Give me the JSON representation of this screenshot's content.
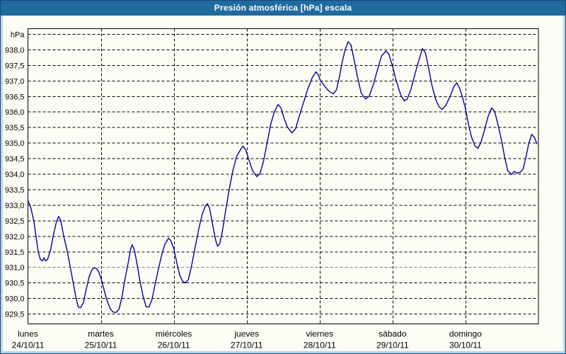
{
  "window": {
    "title": "Presión atmosférica [hPa] escala"
  },
  "colors": {
    "titlebar": "#1f6b9e",
    "frame_light": "#b9d6ec",
    "frame_dark": "#17497a",
    "panel": "#fdfdf6",
    "grid": "#000000",
    "text": "#000000",
    "line": "#0000a0"
  },
  "chart_data": {
    "type": "line",
    "title": "Presión atmosférica [hPa] escala",
    "ylabel": "hPa",
    "grid": "dashed",
    "legend": "none",
    "y_axis": {
      "unit_label": "hPa",
      "decimal_separator": ",",
      "ticks": [
        {
          "value": 938.5,
          "label": "hPa"
        },
        {
          "value": 938.0,
          "label": "938,0"
        },
        {
          "value": 937.5,
          "label": "937,5"
        },
        {
          "value": 937.0,
          "label": "937,0"
        },
        {
          "value": 936.5,
          "label": "936,5"
        },
        {
          "value": 936.0,
          "label": "936,0"
        },
        {
          "value": 935.5,
          "label": "935,5"
        },
        {
          "value": 935.0,
          "label": "935,0"
        },
        {
          "value": 934.5,
          "label": "934,5"
        },
        {
          "value": 934.0,
          "label": "934,0"
        },
        {
          "value": 933.5,
          "label": "933,5"
        },
        {
          "value": 933.0,
          "label": "933,0"
        },
        {
          "value": 932.5,
          "label": "932,5"
        },
        {
          "value": 932.0,
          "label": "932,0"
        },
        {
          "value": 931.5,
          "label": "931,5"
        },
        {
          "value": 931.0,
          "label": "931,0"
        },
        {
          "value": 930.5,
          "label": "930,5"
        },
        {
          "value": 930.0,
          "label": "930,0"
        },
        {
          "value": 929.5,
          "label": "929,5"
        }
      ],
      "ylim_plot_box": [
        929.17,
        938.67
      ]
    },
    "x_axis": {
      "unit": "days",
      "range_days": [
        0,
        7
      ],
      "days": [
        {
          "name": "lunes",
          "date": "24/10/11"
        },
        {
          "name": "martes",
          "date": "25/10/11"
        },
        {
          "name": "miércoles",
          "date": "26/10/11"
        },
        {
          "name": "jueves",
          "date": "27/10/11"
        },
        {
          "name": "viernes",
          "date": "28/10/11"
        },
        {
          "name": "sábado",
          "date": "29/10/11"
        },
        {
          "name": "domingo",
          "date": "30/10/11"
        }
      ]
    },
    "series": [
      {
        "name": "presión atmosférica",
        "color": "#0000a0",
        "x_days": [
          0,
          0.04,
          0.08,
          0.11,
          0.14,
          0.17,
          0.2,
          0.22,
          0.24,
          0.27,
          0.31,
          0.35,
          0.39,
          0.42,
          0.45,
          0.49,
          0.54,
          0.58,
          0.62,
          0.66,
          0.69,
          0.72,
          0.76,
          0.8,
          0.84,
          0.88,
          0.91,
          0.94,
          0.97,
          1.0,
          1.04,
          1.08,
          1.13,
          1.17,
          1.21,
          1.25,
          1.29,
          1.33,
          1.38,
          1.41,
          1.43,
          1.46,
          1.5,
          1.54,
          1.58,
          1.62,
          1.66,
          1.7,
          1.74,
          1.79,
          1.84,
          1.88,
          1.93,
          1.96,
          2.0,
          2.04,
          2.08,
          2.12,
          2.16,
          2.2,
          2.24,
          2.29,
          2.34,
          2.39,
          2.43,
          2.46,
          2.49,
          2.53,
          2.57,
          2.6,
          2.63,
          2.67,
          2.71,
          2.76,
          2.81,
          2.86,
          2.92,
          2.95,
          2.99,
          3.03,
          3.08,
          3.14,
          3.18,
          3.23,
          3.28,
          3.33,
          3.38,
          3.43,
          3.47,
          3.51,
          3.56,
          3.62,
          3.67,
          3.72,
          3.78,
          3.84,
          3.9,
          3.95,
          3.98,
          4.01,
          4.06,
          4.11,
          4.15,
          4.19,
          4.23,
          4.27,
          4.31,
          4.35,
          4.39,
          4.43,
          4.47,
          4.52,
          4.57,
          4.63,
          4.68,
          4.74,
          4.8,
          4.85,
          4.91,
          4.95,
          5.0,
          5.05,
          5.11,
          5.16,
          5.2,
          5.25,
          5.3,
          5.36,
          5.41,
          5.45,
          5.49,
          5.54,
          5.59,
          5.64,
          5.68,
          5.73,
          5.79,
          5.84,
          5.88,
          5.92,
          5.96,
          6.0,
          6.04,
          6.08,
          6.13,
          6.17,
          6.21,
          6.26,
          6.31,
          6.36,
          6.4,
          6.45,
          6.5,
          6.54,
          6.58,
          6.63,
          6.67,
          6.71,
          6.75,
          6.79,
          6.83,
          6.87,
          6.91,
          6.95,
          6.98
        ],
        "pressure_hpa": [
          933.15,
          932.9,
          932.5,
          932.0,
          931.5,
          931.25,
          931.2,
          931.3,
          931.2,
          931.25,
          931.55,
          932.05,
          932.45,
          932.63,
          932.5,
          932.0,
          931.5,
          931.0,
          930.5,
          930.0,
          929.72,
          929.69,
          929.85,
          930.3,
          930.7,
          930.93,
          930.98,
          930.95,
          930.85,
          930.65,
          930.3,
          929.95,
          929.65,
          929.55,
          929.54,
          929.65,
          930.05,
          930.6,
          931.2,
          931.6,
          931.72,
          931.55,
          931.05,
          930.5,
          930.05,
          929.72,
          929.72,
          929.95,
          930.4,
          930.95,
          931.45,
          931.75,
          931.93,
          931.85,
          931.6,
          931.15,
          930.75,
          930.55,
          930.49,
          930.6,
          931.0,
          931.6,
          932.2,
          932.7,
          932.95,
          933.04,
          932.9,
          932.4,
          931.9,
          931.67,
          931.75,
          932.2,
          932.8,
          933.5,
          934.1,
          934.55,
          934.8,
          934.89,
          934.75,
          934.45,
          934.1,
          933.91,
          934.0,
          934.4,
          935.0,
          935.6,
          936.0,
          936.23,
          936.12,
          935.8,
          935.5,
          935.32,
          935.45,
          935.85,
          936.3,
          936.75,
          937.1,
          937.28,
          937.2,
          937.0,
          936.85,
          936.7,
          936.62,
          936.58,
          936.7,
          937.1,
          937.6,
          938.0,
          938.25,
          938.15,
          937.7,
          937.1,
          936.6,
          936.41,
          936.5,
          936.9,
          937.4,
          937.8,
          937.95,
          937.85,
          937.45,
          937.0,
          936.55,
          936.35,
          936.4,
          936.7,
          937.15,
          937.65,
          938.03,
          937.9,
          937.45,
          936.85,
          936.4,
          936.15,
          936.07,
          936.2,
          936.5,
          936.8,
          936.93,
          936.75,
          936.45,
          936.1,
          935.6,
          935.2,
          934.9,
          934.82,
          935.0,
          935.4,
          935.85,
          936.12,
          936.0,
          935.55,
          935.0,
          934.5,
          934.1,
          933.98,
          934.08,
          934.02,
          934.05,
          934.15,
          934.55,
          935.0,
          935.27,
          935.15,
          934.97
        ]
      }
    ]
  }
}
